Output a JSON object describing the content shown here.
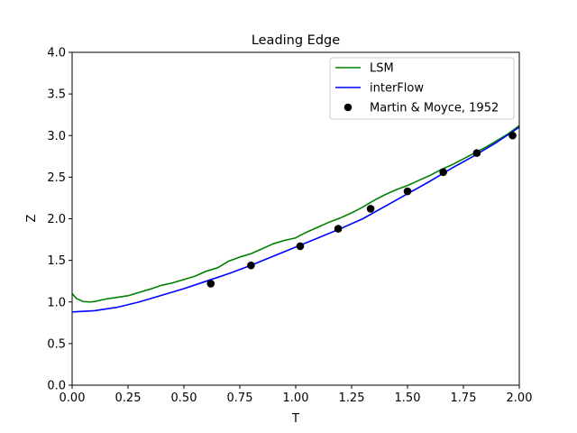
{
  "chart_data": {
    "type": "line",
    "title": "Leading Edge",
    "xlabel": "T",
    "ylabel": "Z",
    "xlim": [
      0.0,
      2.0
    ],
    "ylim": [
      0.0,
      4.0
    ],
    "x_ticks": [
      "0.00",
      "0.25",
      "0.50",
      "0.75",
      "1.00",
      "1.25",
      "1.50",
      "1.75",
      "2.00"
    ],
    "y_ticks": [
      "0.0",
      "0.5",
      "1.0",
      "1.5",
      "2.0",
      "2.5",
      "3.0",
      "3.5",
      "4.0"
    ],
    "grid": false,
    "legend_position": "top-right",
    "series": [
      {
        "name": "LSM",
        "kind": "line",
        "color": "#008000",
        "x": [
          0.0,
          0.02,
          0.05,
          0.08,
          0.1,
          0.15,
          0.2,
          0.25,
          0.3,
          0.35,
          0.4,
          0.45,
          0.5,
          0.55,
          0.6,
          0.65,
          0.7,
          0.75,
          0.8,
          0.85,
          0.9,
          0.95,
          1.0,
          1.02,
          1.05,
          1.1,
          1.15,
          1.2,
          1.25,
          1.3,
          1.35,
          1.4,
          1.45,
          1.5,
          1.55,
          1.6,
          1.65,
          1.7,
          1.75,
          1.8,
          1.85,
          1.9,
          1.95,
          2.0
        ],
        "y": [
          1.1,
          1.04,
          1.005,
          1.0,
          1.005,
          1.035,
          1.055,
          1.075,
          1.115,
          1.155,
          1.2,
          1.23,
          1.27,
          1.31,
          1.37,
          1.41,
          1.49,
          1.54,
          1.58,
          1.64,
          1.7,
          1.74,
          1.77,
          1.8,
          1.84,
          1.9,
          1.96,
          2.01,
          2.07,
          2.14,
          2.22,
          2.29,
          2.35,
          2.4,
          2.46,
          2.52,
          2.59,
          2.65,
          2.72,
          2.79,
          2.86,
          2.94,
          3.02,
          3.12
        ]
      },
      {
        "name": "interFlow",
        "kind": "line",
        "color": "#0000ff",
        "x": [
          0.0,
          0.1,
          0.2,
          0.3,
          0.4,
          0.5,
          0.6,
          0.7,
          0.8,
          0.9,
          1.0,
          1.1,
          1.2,
          1.3,
          1.4,
          1.5,
          1.6,
          1.7,
          1.8,
          1.9,
          2.0
        ],
        "y": [
          0.88,
          0.895,
          0.935,
          1.0,
          1.08,
          1.16,
          1.25,
          1.34,
          1.44,
          1.55,
          1.66,
          1.77,
          1.88,
          2.0,
          2.15,
          2.3,
          2.45,
          2.61,
          2.76,
          2.92,
          3.1
        ]
      },
      {
        "name": "Martin & Moyce, 1952",
        "kind": "scatter",
        "color": "#000000",
        "x": [
          0.62,
          0.8,
          1.02,
          1.19,
          1.335,
          1.5,
          1.66,
          1.81,
          1.97
        ],
        "y": [
          1.22,
          1.44,
          1.67,
          1.88,
          2.12,
          2.33,
          2.56,
          2.79,
          3.0
        ]
      }
    ]
  }
}
